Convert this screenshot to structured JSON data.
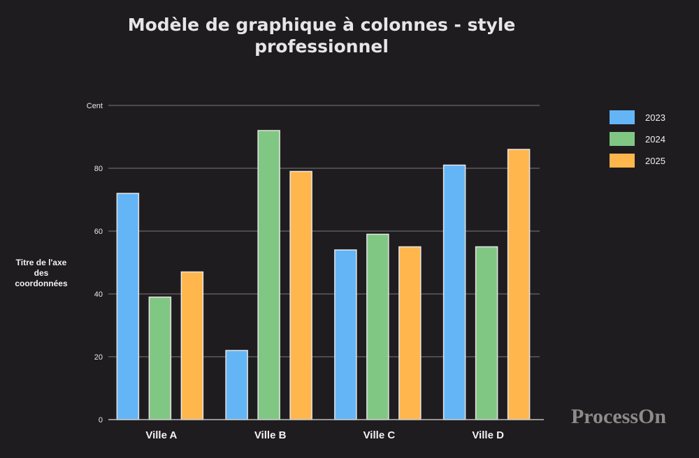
{
  "chart_data": {
    "type": "bar",
    "title": "Modèle de graphique à colonnes - style professionnel",
    "title_lines": [
      "Modèle de graphique à colonnes - style",
      "professionnel"
    ],
    "ylabel": "Titre de l'axe des coordonnées",
    "ylabel_lines": [
      "Titre de l'axe",
      "des",
      "coordonnées"
    ],
    "xlabel": "",
    "categories": [
      "Ville A",
      "Ville B",
      "Ville C",
      "Ville D"
    ],
    "series": [
      {
        "name": "2023",
        "color": "#64b5f6",
        "values": [
          72,
          22,
          54,
          81
        ]
      },
      {
        "name": "2024",
        "color": "#81c784",
        "values": [
          39,
          92,
          59,
          55
        ]
      },
      {
        "name": "2025",
        "color": "#ffb74d",
        "values": [
          47,
          79,
          55,
          86
        ]
      }
    ],
    "y_ticks": [
      {
        "value": 0,
        "label": "0"
      },
      {
        "value": 20,
        "label": "20"
      },
      {
        "value": 40,
        "label": "40"
      },
      {
        "value": 60,
        "label": "60"
      },
      {
        "value": 80,
        "label": "80"
      },
      {
        "value": 100,
        "label": "Cent"
      }
    ],
    "ylim": [
      0,
      100
    ],
    "grid": true,
    "legend_position": "top-right"
  },
  "watermark": "ProcessOn"
}
